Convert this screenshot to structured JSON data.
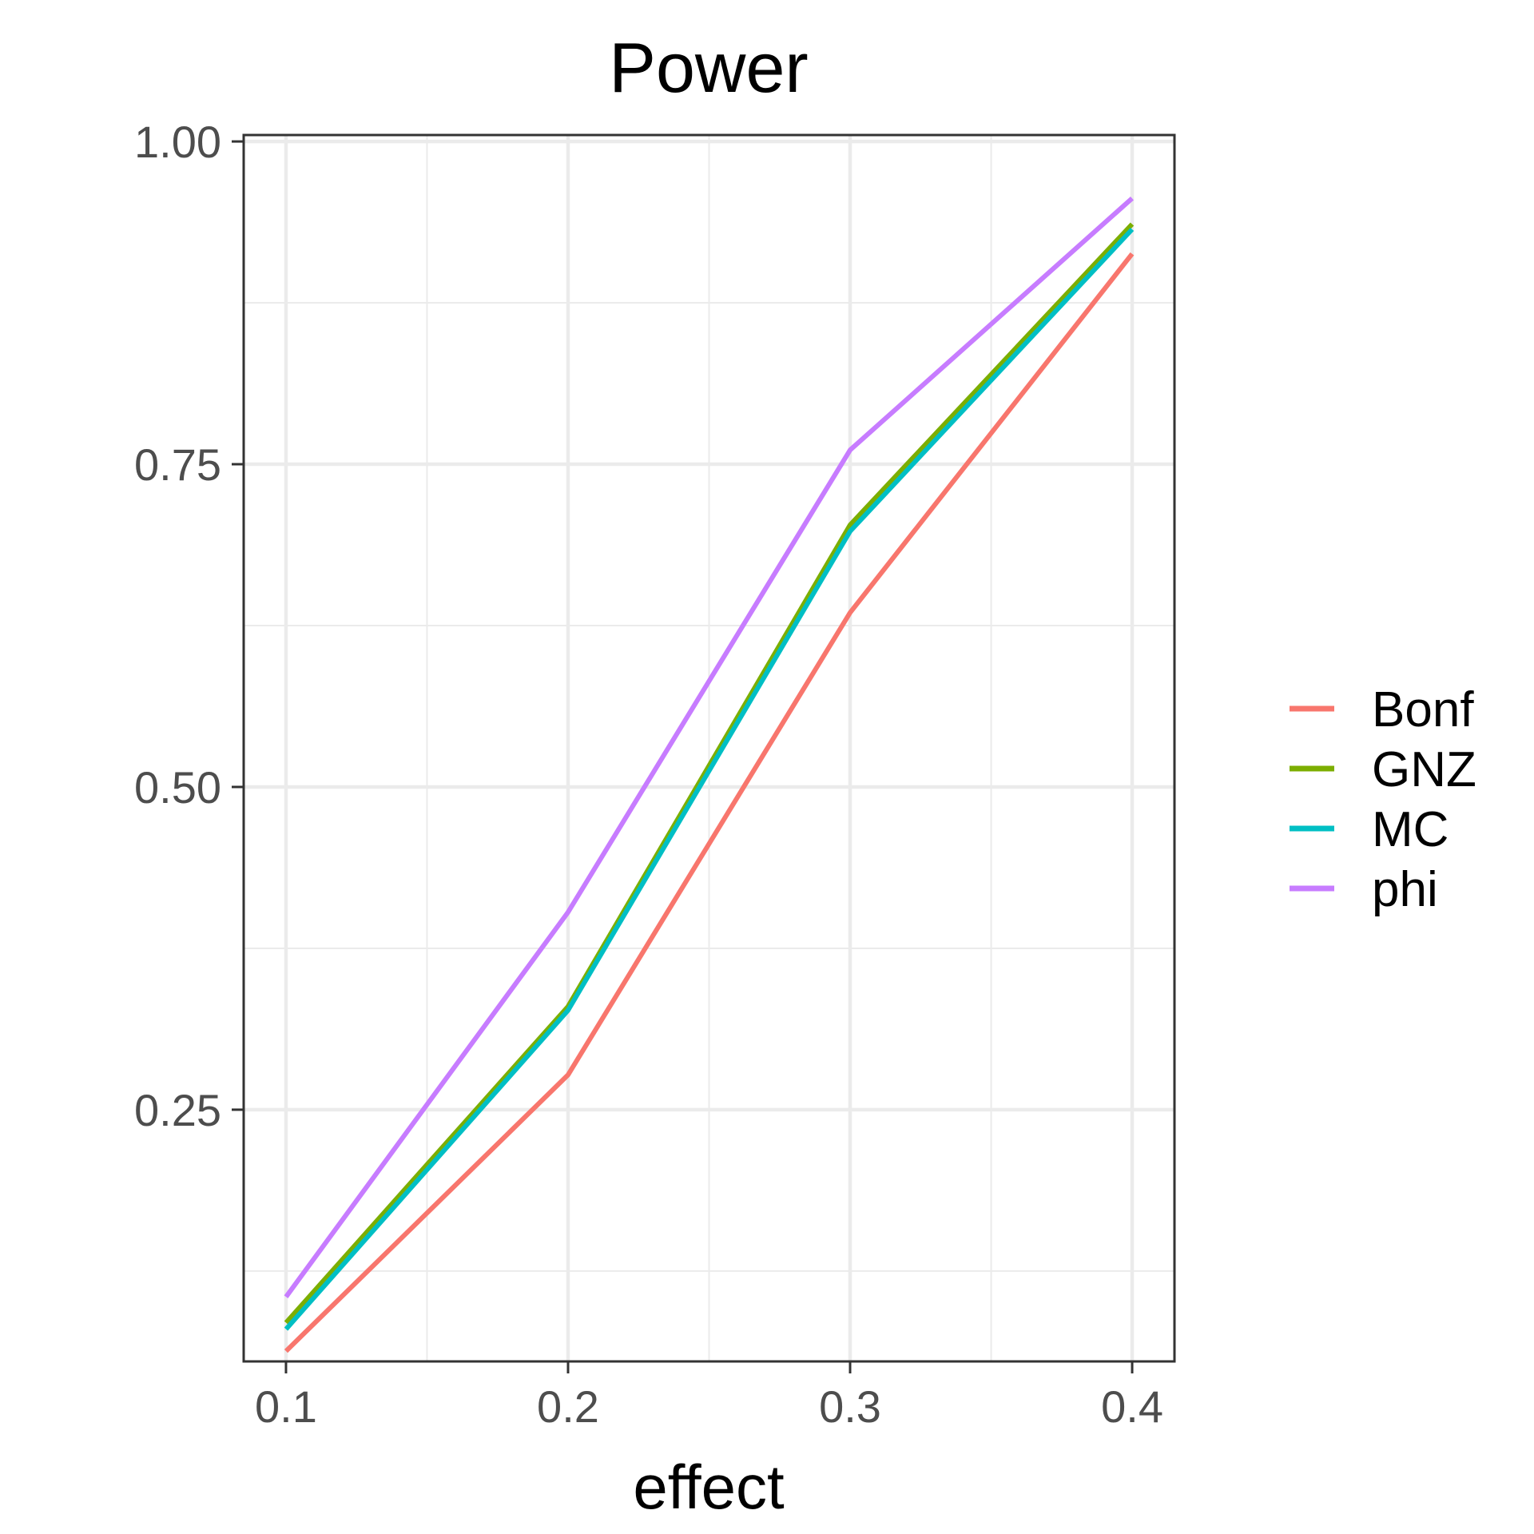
{
  "chart_data": {
    "type": "line",
    "title": "Power",
    "xlabel": "effect",
    "ylabel": "",
    "x": [
      0.1,
      0.2,
      0.3,
      0.4
    ],
    "x_ticks": [
      "0.1",
      "0.2",
      "0.3",
      "0.4"
    ],
    "y_ticks": [
      "0.25",
      "0.50",
      "0.75",
      "1.00"
    ],
    "xlim": [
      0.085,
      0.415
    ],
    "ylim": [
      0.055,
      1.005
    ],
    "grid": true,
    "legend_position": "right",
    "series": [
      {
        "name": "Bonf",
        "color": "#F8766D",
        "values": [
          0.063,
          0.277,
          0.635,
          0.913
        ]
      },
      {
        "name": "GNZ",
        "color": "#7CAE00",
        "values": [
          0.085,
          0.33,
          0.703,
          0.936
        ]
      },
      {
        "name": "MC",
        "color": "#00BFC4",
        "values": [
          0.08,
          0.327,
          0.698,
          0.932
        ]
      },
      {
        "name": "phi",
        "color": "#C77CFF",
        "values": [
          0.105,
          0.403,
          0.761,
          0.956
        ]
      }
    ]
  }
}
